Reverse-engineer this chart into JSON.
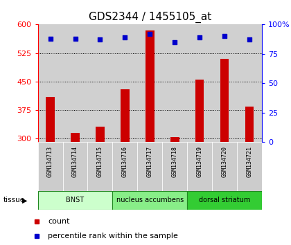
{
  "title": "GDS2344 / 1455105_at",
  "samples": [
    "GSM134713",
    "GSM134714",
    "GSM134715",
    "GSM134716",
    "GSM134717",
    "GSM134718",
    "GSM134719",
    "GSM134720",
    "GSM134721"
  ],
  "counts": [
    410,
    315,
    330,
    430,
    585,
    303,
    455,
    510,
    383
  ],
  "percentiles": [
    88,
    88,
    87,
    89,
    92,
    85,
    89,
    90,
    87
  ],
  "ylim_left": [
    290,
    600
  ],
  "yticks_left": [
    300,
    375,
    450,
    525,
    600
  ],
  "ylim_right": [
    0,
    100
  ],
  "yticks_right": [
    0,
    25,
    50,
    75,
    100
  ],
  "bar_color": "#cc0000",
  "dot_color": "#0000cc",
  "tissues": [
    {
      "label": "BNST",
      "start": 0,
      "end": 3,
      "color": "#ccffcc"
    },
    {
      "label": "nucleus accumbens",
      "start": 3,
      "end": 6,
      "color": "#88ee88"
    },
    {
      "label": "dorsal striatum",
      "start": 6,
      "end": 9,
      "color": "#33cc33"
    }
  ],
  "tissue_label": "tissue",
  "legend_count": "count",
  "legend_pct": "percentile rank within the sample",
  "title_fontsize": 11,
  "tick_fontsize": 8,
  "sample_fontsize": 6
}
